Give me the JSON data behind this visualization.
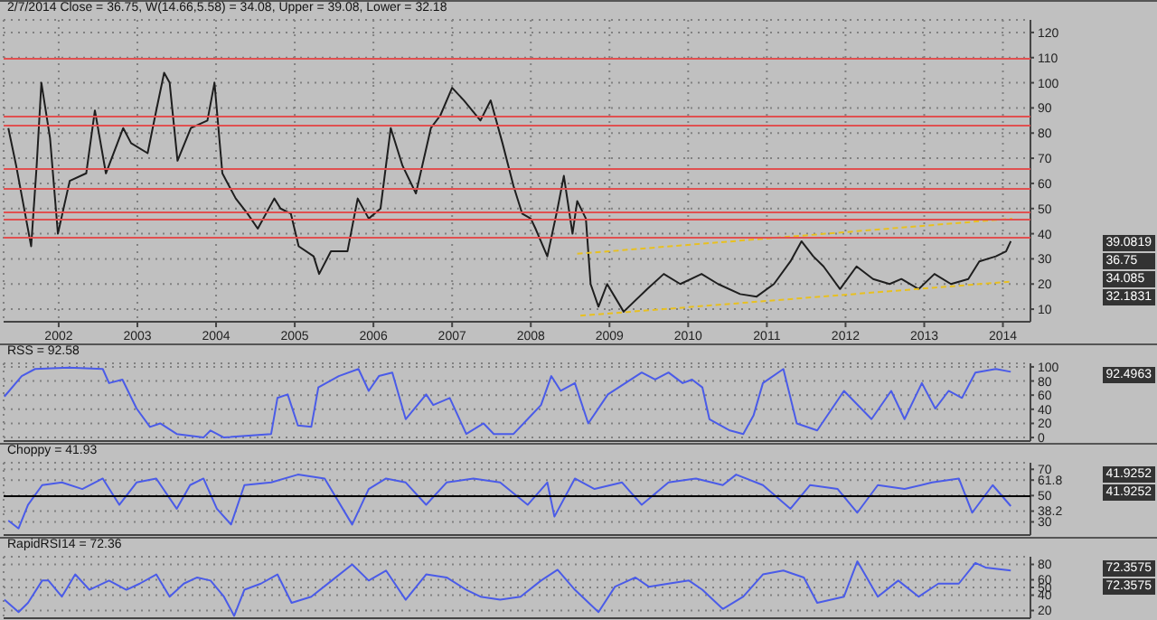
{
  "chart_data": [
    {
      "type": "line",
      "title": "2/7/2014 Close = 36.75, W(14.66,5.58) = 34.08, Upper = 39.08, Lower = 32.18",
      "xlim": [
        2001.3,
        2014.35
      ],
      "xticks": [
        2002,
        2003,
        2004,
        2005,
        2006,
        2007,
        2008,
        2009,
        2010,
        2011,
        2012,
        2013,
        2014
      ],
      "ylim": [
        5,
        125
      ],
      "yticks": [
        10,
        20,
        30,
        40,
        50,
        60,
        70,
        80,
        90,
        100,
        110,
        120
      ],
      "grid": true,
      "series": [
        {
          "color": "#1e1e1e",
          "x": [
            2001.36,
            2001.46,
            2001.65,
            2001.72,
            2001.78,
            2001.89,
            2001.99,
            2002.14,
            2002.35,
            2002.46,
            2002.6,
            2002.82,
            2002.92,
            2003.13,
            2003.24,
            2003.34,
            2003.41,
            2003.51,
            2003.68,
            2003.89,
            2003.98,
            2004.08,
            2004.25,
            2004.4,
            2004.53,
            2004.74,
            2004.82,
            2004.95,
            2005.05,
            2005.24,
            2005.31,
            2005.46,
            2005.67,
            2005.8,
            2005.94,
            2006.09,
            2006.22,
            2006.37,
            2006.54,
            2006.73,
            2006.85,
            2007.0,
            2007.15,
            2007.36,
            2007.49,
            2007.64,
            2007.78,
            2007.89,
            2008.0,
            2008.06,
            2008.21,
            2008.34,
            2008.42,
            2008.53,
            2008.59,
            2008.7,
            2008.76,
            2008.86,
            2008.97,
            2009.18,
            2009.48,
            2009.69,
            2009.9,
            2010.17,
            2010.38,
            2010.66,
            2010.87,
            2011.09,
            2011.3,
            2011.44,
            2011.59,
            2011.72,
            2011.93,
            2012.14,
            2012.35,
            2012.56,
            2012.71,
            2012.93,
            2013.13,
            2013.34,
            2013.56,
            2013.7,
            2013.91,
            2014.04,
            2014.1
          ],
          "values": [
            82,
            67,
            35,
            67,
            100,
            78,
            40,
            61,
            64,
            89,
            64,
            82,
            76,
            72,
            89,
            104,
            100,
            69,
            82,
            85,
            100,
            64,
            54,
            48,
            42,
            54,
            50,
            48,
            35,
            31,
            24,
            33,
            33,
            54,
            46,
            50,
            82,
            67,
            56,
            82,
            87,
            98,
            93,
            85,
            93,
            76,
            59,
            48,
            46,
            42,
            31,
            50,
            63,
            40,
            53,
            46,
            20,
            11,
            20,
            9,
            18,
            24,
            20,
            24,
            20,
            16,
            15,
            20,
            29,
            37,
            31,
            27,
            18,
            27,
            22,
            20,
            22,
            18,
            24,
            20,
            22,
            29,
            31,
            33,
            37
          ]
        },
        {
          "color": "#e8c020",
          "line_style": "dotted",
          "x": [
            2008.59,
            2014.12
          ],
          "values": [
            32,
            46
          ]
        },
        {
          "color": "#e8c020",
          "line_style": "dotted",
          "x": [
            2008.63,
            2014.12
          ],
          "values": [
            7.4,
            21
          ]
        }
      ],
      "ref_lines": [
        {
          "axis": "y",
          "value": 110,
          "color": "#e05050"
        },
        {
          "axis": "y",
          "value": 87,
          "color": "#e05050"
        },
        {
          "axis": "y",
          "value": 83,
          "color": "#e05050"
        },
        {
          "axis": "y",
          "value": 66,
          "color": "#e05050"
        },
        {
          "axis": "y",
          "value": 58.5,
          "color": "#e05050"
        },
        {
          "axis": "y",
          "value": 48.7,
          "color": "#e05050"
        },
        {
          "axis": "y",
          "value": 46,
          "color": "#e05050"
        },
        {
          "axis": "y",
          "value": 39,
          "color": "#e05050"
        }
      ],
      "annotations": [
        "39.0819",
        "36.75",
        "34.085",
        "32.1831"
      ]
    },
    {
      "type": "line",
      "title": "RSS = 92.58",
      "xlim": [
        2001.3,
        2014.35
      ],
      "xticks": [
        2002,
        2003,
        2004,
        2005,
        2006,
        2007,
        2008,
        2009,
        2010,
        2011,
        2012,
        2013,
        2014
      ],
      "ylim": [
        -5,
        105
      ],
      "yticks": [
        0,
        20,
        40,
        60,
        80,
        100
      ],
      "grid": true,
      "tick_labels": "y",
      "series": [
        {
          "color": "#4a5be8",
          "x": [
            2001.31,
            2001.53,
            2001.7,
            2002.13,
            2002.56,
            2002.64,
            2002.81,
            2002.99,
            2003.16,
            2003.29,
            2003.5,
            2003.84,
            2003.93,
            2004.1,
            2004.7,
            2004.78,
            2004.91,
            2005.04,
            2005.21,
            2005.3,
            2005.56,
            2005.81,
            2005.94,
            2006.07,
            2006.24,
            2006.41,
            2006.67,
            2006.76,
            2006.97,
            2007.18,
            2007.4,
            2007.53,
            2007.78,
            2007.96,
            2008.13,
            2008.26,
            2008.38,
            2008.56,
            2008.73,
            2008.98,
            2009.41,
            2009.58,
            2009.75,
            2009.93,
            2010.05,
            2010.18,
            2010.27,
            2010.53,
            2010.7,
            2010.83,
            2010.95,
            2011.21,
            2011.38,
            2011.64,
            2011.98,
            2012.33,
            2012.58,
            2012.75,
            2012.97,
            2013.14,
            2013.31,
            2013.48,
            2013.65,
            2013.91,
            2014.1
          ],
          "values": [
            58,
            87,
            97,
            99,
            97,
            77,
            82,
            41,
            15,
            20,
            5,
            0,
            10,
            0,
            5,
            56,
            61,
            17,
            15,
            71,
            87,
            97,
            66,
            87,
            92,
            26,
            61,
            46,
            56,
            5,
            20,
            5,
            5,
            26,
            46,
            87,
            66,
            77,
            20,
            61,
            92,
            82,
            92,
            77,
            82,
            71,
            26,
            10,
            5,
            31,
            77,
            97,
            20,
            10,
            66,
            26,
            66,
            26,
            77,
            41,
            66,
            56,
            92,
            97,
            93
          ]
        }
      ],
      "annotations": [
        "92.4963"
      ]
    },
    {
      "type": "line",
      "title": "Choppy = 41.93",
      "xlim": [
        2001.3,
        2014.35
      ],
      "xticks": [
        2002,
        2003,
        2004,
        2005,
        2006,
        2007,
        2008,
        2009,
        2010,
        2011,
        2012,
        2013,
        2014
      ],
      "ylim": [
        20,
        75
      ],
      "yticks": [
        30,
        38.2,
        50,
        61.8,
        70
      ],
      "grid": true,
      "tick_labels": "y",
      "series": [
        {
          "color": "#4a5be8",
          "x": [
            2001.36,
            2001.49,
            2001.61,
            2001.79,
            2002.04,
            2002.3,
            2002.56,
            2002.77,
            2002.99,
            2003.24,
            2003.5,
            2003.67,
            2003.84,
            2004.01,
            2004.19,
            2004.36,
            2004.7,
            2005.04,
            2005.38,
            2005.73,
            2005.94,
            2006.16,
            2006.41,
            2006.67,
            2006.93,
            2007.27,
            2007.61,
            2007.96,
            2008.21,
            2008.3,
            2008.56,
            2008.81,
            2009.16,
            2009.41,
            2009.75,
            2010.1,
            2010.44,
            2010.61,
            2010.95,
            2011.3,
            2011.55,
            2011.9,
            2012.15,
            2012.41,
            2012.75,
            2013.1,
            2013.44,
            2013.61,
            2013.87,
            2014.1
          ],
          "values": [
            31,
            25,
            43,
            58,
            60,
            55,
            63,
            43,
            60,
            63,
            40,
            58,
            63,
            40,
            28,
            58,
            60,
            66,
            63,
            28,
            55,
            63,
            60,
            43,
            60,
            63,
            60,
            43,
            60,
            34,
            63,
            55,
            60,
            43,
            60,
            63,
            58,
            66,
            58,
            40,
            58,
            55,
            37,
            58,
            55,
            60,
            63,
            37,
            58,
            42
          ]
        }
      ],
      "ref_lines": [
        {
          "axis": "y",
          "value": 50,
          "color": "#000000"
        }
      ],
      "annotations": [
        "41.9252",
        "41.9252"
      ]
    },
    {
      "type": "line",
      "title": "RapidRSI14 = 72.36",
      "xlim": [
        2001.3,
        2014.35
      ],
      "xticks": [
        2002,
        2003,
        2004,
        2005,
        2006,
        2007,
        2008,
        2009,
        2010,
        2011,
        2012,
        2013,
        2014
      ],
      "ylim": [
        10,
        90
      ],
      "yticks": [
        20,
        40,
        50,
        60,
        80
      ],
      "grid": true,
      "tick_labels": "y",
      "series": [
        {
          "color": "#4a5be8",
          "x": [
            2001.31,
            2001.49,
            2001.61,
            2001.79,
            2001.87,
            2002.04,
            2002.21,
            2002.39,
            2002.64,
            2002.86,
            2003.03,
            2003.24,
            2003.41,
            2003.59,
            2003.76,
            2003.93,
            2004.1,
            2004.23,
            2004.36,
            2004.57,
            2004.78,
            2004.96,
            2005.21,
            2005.47,
            2005.73,
            2005.94,
            2006.16,
            2006.41,
            2006.67,
            2006.93,
            2007.18,
            2007.36,
            2007.61,
            2007.87,
            2008.13,
            2008.34,
            2008.56,
            2008.86,
            2009.07,
            2009.33,
            2009.5,
            2009.75,
            2010.01,
            2010.18,
            2010.44,
            2010.7,
            2010.95,
            2011.21,
            2011.47,
            2011.64,
            2011.98,
            2012.15,
            2012.41,
            2012.67,
            2012.93,
            2013.18,
            2013.44,
            2013.65,
            2013.78,
            2014.1
          ],
          "values": [
            34,
            18,
            30,
            59,
            59,
            38,
            67,
            47,
            59,
            47,
            55,
            67,
            38,
            55,
            63,
            59,
            38,
            13,
            47,
            55,
            67,
            30,
            38,
            59,
            80,
            59,
            72,
            34,
            67,
            63,
            47,
            38,
            34,
            38,
            59,
            73,
            47,
            18,
            51,
            63,
            51,
            55,
            59,
            47,
            22,
            38,
            67,
            72,
            63,
            30,
            38,
            84,
            38,
            59,
            38,
            55,
            55,
            82,
            76,
            72
          ]
        }
      ],
      "annotations": [
        "72.3575",
        "72.3575"
      ]
    }
  ]
}
